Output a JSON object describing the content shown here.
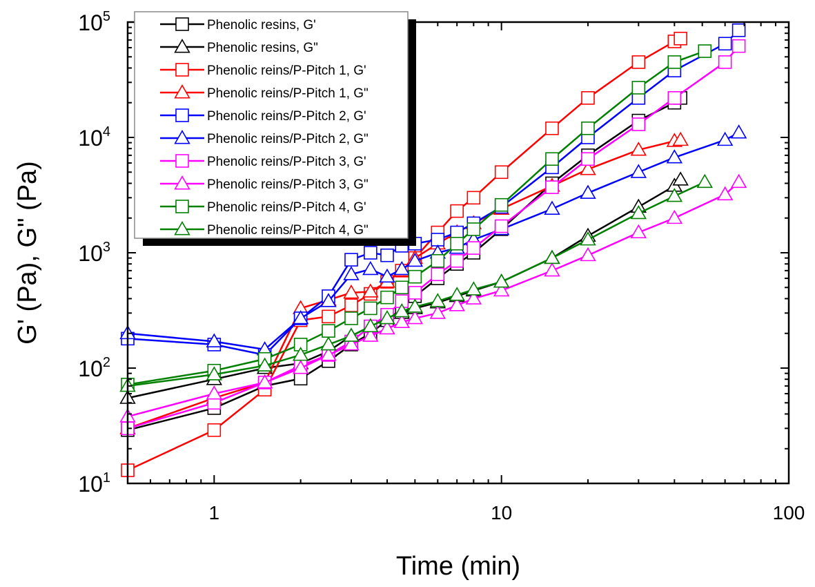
{
  "chart_data": {
    "type": "line",
    "xlabel": "Time (min)",
    "ylabel": "G' (Pa), G\" (Pa)",
    "xscale": "log",
    "yscale": "log",
    "xlim": [
      0.5,
      100
    ],
    "ylim": [
      10,
      100000
    ],
    "x_ticks": [
      {
        "v": 1,
        "label": "1"
      },
      {
        "v": 10,
        "label": "10"
      },
      {
        "v": 100,
        "label": "100"
      }
    ],
    "y_ticks": [
      {
        "v": 10,
        "base": "10",
        "exp": "1"
      },
      {
        "v": 100,
        "base": "10",
        "exp": "2"
      },
      {
        "v": 1000,
        "base": "10",
        "exp": "3"
      },
      {
        "v": 10000,
        "base": "10",
        "exp": "4"
      },
      {
        "v": 100000,
        "base": "10",
        "exp": "5"
      }
    ],
    "grid": false,
    "legend_placement": "top-left",
    "series": [
      {
        "name": "Phenolic resins, G'",
        "color": "#000000",
        "marker": "square",
        "x": [
          0.5,
          1,
          1.5,
          2,
          2.5,
          3,
          3.5,
          4,
          4.5,
          5,
          6,
          7,
          8,
          10,
          15,
          20,
          30,
          40,
          42
        ],
        "y": [
          29,
          45,
          70,
          81,
          115,
          160,
          200,
          260,
          330,
          420,
          600,
          800,
          1000,
          1600,
          4000,
          7000,
          14000,
          20000,
          22000
        ]
      },
      {
        "name": "Phenolic resins, G\"",
        "color": "#000000",
        "marker": "triangle",
        "x": [
          0.5,
          1,
          1.5,
          2,
          2.5,
          3,
          3.5,
          4,
          4.5,
          5,
          6,
          7,
          8,
          10,
          15,
          20,
          30,
          40,
          42
        ],
        "y": [
          55,
          80,
          100,
          110,
          140,
          190,
          230,
          270,
          300,
          330,
          370,
          420,
          470,
          560,
          900,
          1400,
          2500,
          3800,
          4300
        ]
      },
      {
        "name": "Phenolic reins/P-Pitch 1, G'",
        "color": "#ff0000",
        "marker": "square",
        "x": [
          0.5,
          1,
          1.5,
          2,
          2.5,
          3,
          3.5,
          4,
          4.5,
          5,
          6,
          7,
          8,
          10,
          15,
          20,
          30,
          40,
          42
        ],
        "y": [
          13,
          29,
          65,
          260,
          280,
          350,
          440,
          560,
          700,
          900,
          1500,
          2300,
          3000,
          5000,
          12000,
          22000,
          45000,
          68000,
          72000
        ]
      },
      {
        "name": "Phenolic reins/P-Pitch 1, G\"",
        "color": "#ff0000",
        "marker": "triangle",
        "x": [
          0.5,
          1,
          1.5,
          2,
          2.5,
          3,
          3.5,
          4,
          4.5,
          5,
          6,
          7,
          8,
          10,
          15,
          20,
          30,
          40,
          42
        ],
        "y": [
          30,
          55,
          75,
          330,
          390,
          450,
          460,
          560,
          700,
          900,
          1200,
          1500,
          1800,
          2400,
          3800,
          5300,
          7800,
          9300,
          9500
        ]
      },
      {
        "name": "Phenolic reins/P-Pitch 2, G'",
        "color": "#0000ff",
        "marker": "square",
        "x": [
          0.5,
          1,
          1.5,
          2,
          2.5,
          3,
          3.5,
          4,
          4.5,
          5,
          6,
          7,
          8,
          10,
          15,
          20,
          30,
          40,
          60,
          67
        ],
        "y": [
          180,
          160,
          130,
          270,
          420,
          870,
          1000,
          950,
          1150,
          1200,
          1300,
          1500,
          1800,
          2500,
          5500,
          10000,
          22000,
          38000,
          65000,
          85000
        ]
      },
      {
        "name": "Phenolic reins/P-Pitch 2, G\"",
        "color": "#0000ff",
        "marker": "triangle",
        "x": [
          0.5,
          1,
          1.5,
          2,
          2.5,
          3,
          3.5,
          4,
          4.5,
          5,
          6,
          7,
          8,
          10,
          15,
          20,
          30,
          40,
          60,
          67
        ],
        "y": [
          200,
          170,
          145,
          270,
          380,
          650,
          720,
          620,
          720,
          850,
          1000,
          1100,
          1300,
          1600,
          2400,
          3300,
          5000,
          6700,
          9500,
          11000
        ]
      },
      {
        "name": "Phenolic reins/P-Pitch 3, G'",
        "color": "#ff00ff",
        "marker": "square",
        "x": [
          0.5,
          1,
          1.5,
          2,
          2.5,
          3,
          3.5,
          4,
          4.5,
          5,
          6,
          7,
          8,
          10,
          15,
          20,
          30,
          40,
          60,
          67
        ],
        "y": [
          30,
          50,
          75,
          105,
          130,
          170,
          230,
          290,
          380,
          450,
          650,
          850,
          1100,
          1700,
          3700,
          6500,
          13000,
          22000,
          45000,
          62000
        ]
      },
      {
        "name": "Phenolic reins/P-Pitch 3, G\"",
        "color": "#ff00ff",
        "marker": "triangle",
        "x": [
          0.5,
          1,
          1.5,
          2,
          2.5,
          3,
          3.5,
          4,
          4.5,
          5,
          6,
          7,
          8,
          10,
          15,
          20,
          30,
          40,
          60,
          67
        ],
        "y": [
          38,
          60,
          75,
          100,
          130,
          160,
          190,
          220,
          250,
          270,
          300,
          350,
          400,
          470,
          700,
          950,
          1500,
          2000,
          3200,
          4100
        ]
      },
      {
        "name": "Phenolic reins/P-Pitch 4, G'",
        "color": "#008000",
        "marker": "square",
        "x": [
          0.5,
          1,
          1.5,
          2,
          2.5,
          3,
          3.5,
          4,
          4.5,
          5,
          6,
          7,
          8,
          10,
          15,
          20,
          30,
          40,
          51
        ],
        "y": [
          72,
          95,
          120,
          160,
          210,
          270,
          330,
          410,
          500,
          620,
          850,
          1200,
          1600,
          2600,
          6500,
          12000,
          27000,
          45000,
          56000
        ]
      },
      {
        "name": "Phenolic reins/P-Pitch 4, G\"",
        "color": "#008000",
        "marker": "triangle",
        "x": [
          0.5,
          1,
          1.5,
          2,
          2.5,
          3,
          3.5,
          4,
          4.5,
          5,
          6,
          7,
          8,
          10,
          15,
          20,
          30,
          40,
          51
        ],
        "y": [
          70,
          88,
          105,
          130,
          160,
          190,
          230,
          270,
          310,
          340,
          380,
          430,
          480,
          560,
          900,
          1300,
          2200,
          3100,
          4100
        ]
      }
    ]
  }
}
